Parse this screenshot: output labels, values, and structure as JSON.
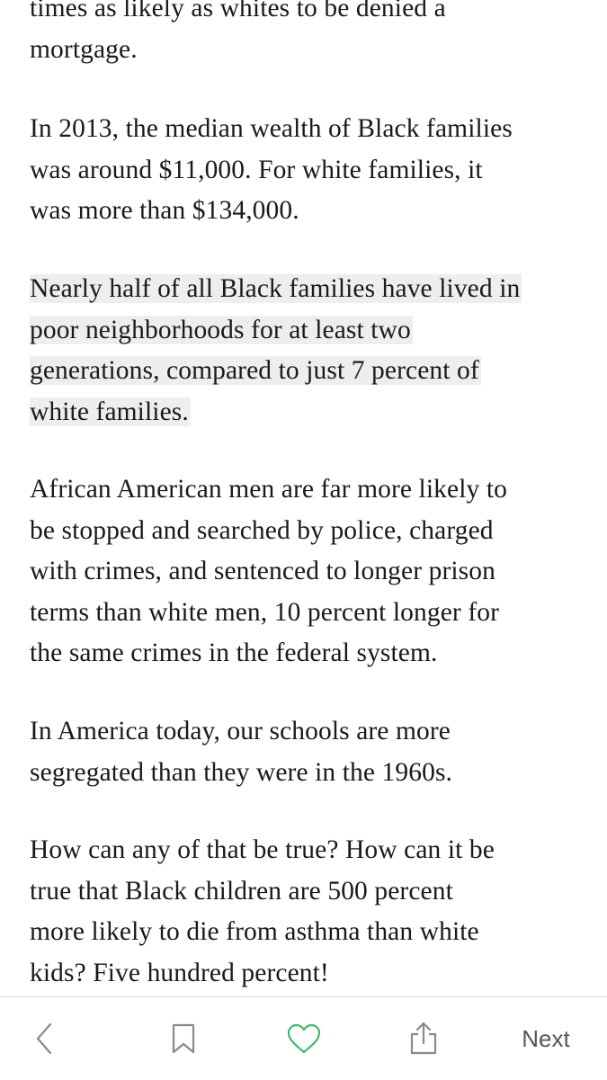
{
  "article": {
    "paragraphs": [
      {
        "id": "mortgage",
        "lines": [
          "times as likely as whites to be denied a",
          "mortgage."
        ]
      },
      {
        "id": "wealth",
        "lines": [
          "In 2013, the median wealth of Black families",
          "was around $11,000. For white families, it",
          "was more than $134,000."
        ]
      },
      {
        "id": "neighborhoods",
        "highlighted": true,
        "lines": [
          "Nearly half of all Black families have lived in",
          "poor neighborhoods for at least two",
          "generations, compared to just 7 percent of",
          "white families."
        ]
      },
      {
        "id": "police",
        "lines": [
          "African American men are far more likely to",
          "be stopped and searched by police, charged",
          "with crimes, and sentenced to longer prison",
          "terms than white men, 10 percent longer for",
          "the same crimes in the federal system."
        ]
      },
      {
        "id": "schools",
        "lines": [
          "In America today, our schools are more",
          "segregated than they were in the 1960s."
        ]
      },
      {
        "id": "asthma",
        "lines": [
          "How can any of that be true? How can it be",
          "true that Black children are 500 percent",
          "more likely to die from asthma than white",
          "kids? Five hundred percent!"
        ]
      }
    ]
  },
  "toolbar": {
    "back_icon": "chevron-left-icon",
    "bookmark_icon": "bookmark-icon",
    "like_icon": "heart-icon",
    "share_icon": "share-icon",
    "next_label": "Next",
    "accent_color": "#3fb96a",
    "icon_color": "#8a8a8a",
    "highlight_color": "#eeeeee"
  }
}
